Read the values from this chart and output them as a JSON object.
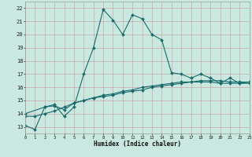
{
  "xlabel": "Humidex (Indice chaleur)",
  "background_color": "#c8e8e0",
  "grid_color_minor": "#b8d8d0",
  "grid_color_major": "#d8b8b8",
  "line_color": "#1a6b6b",
  "xlim": [
    0,
    23
  ],
  "ylim": [
    12.5,
    22.5
  ],
  "xticks": [
    0,
    1,
    2,
    3,
    4,
    5,
    6,
    7,
    8,
    9,
    10,
    11,
    12,
    13,
    14,
    15,
    16,
    17,
    18,
    19,
    20,
    21,
    22,
    23
  ],
  "yticks": [
    13,
    14,
    15,
    16,
    17,
    18,
    19,
    20,
    21,
    22
  ],
  "line1_x": [
    0,
    1,
    2,
    3,
    4,
    5,
    6,
    7,
    8,
    9,
    10,
    11,
    12,
    13,
    14,
    15,
    16,
    17,
    18,
    19,
    20,
    21,
    22,
    23
  ],
  "line1_y": [
    13.1,
    12.8,
    14.5,
    14.7,
    13.8,
    14.5,
    17.0,
    19.0,
    21.9,
    21.1,
    20.0,
    21.5,
    21.2,
    20.0,
    19.6,
    17.1,
    17.0,
    16.7,
    17.0,
    16.7,
    16.3,
    16.7,
    16.3,
    16.4
  ],
  "line2_x": [
    0,
    2,
    3,
    4,
    5,
    6,
    7,
    8,
    9,
    10,
    11,
    12,
    13,
    14,
    15,
    16,
    17,
    18,
    19,
    20,
    21,
    22,
    23
  ],
  "line2_y": [
    14.0,
    14.5,
    14.6,
    14.3,
    14.8,
    15.0,
    15.2,
    15.3,
    15.4,
    15.6,
    15.7,
    15.8,
    16.0,
    16.1,
    16.2,
    16.3,
    16.4,
    16.5,
    16.5,
    16.5,
    16.4,
    16.4,
    16.4
  ],
  "line3_x": [
    0,
    1,
    2,
    3,
    4,
    5,
    6,
    7,
    8,
    9,
    10,
    11,
    12,
    13,
    14,
    15,
    16,
    17,
    18,
    19,
    20,
    21,
    22,
    23
  ],
  "line3_y": [
    13.8,
    13.8,
    14.0,
    14.2,
    14.5,
    14.8,
    15.0,
    15.2,
    15.4,
    15.5,
    15.7,
    15.8,
    16.0,
    16.1,
    16.2,
    16.3,
    16.4,
    16.4,
    16.4,
    16.4,
    16.3,
    16.3,
    16.3,
    16.3
  ]
}
